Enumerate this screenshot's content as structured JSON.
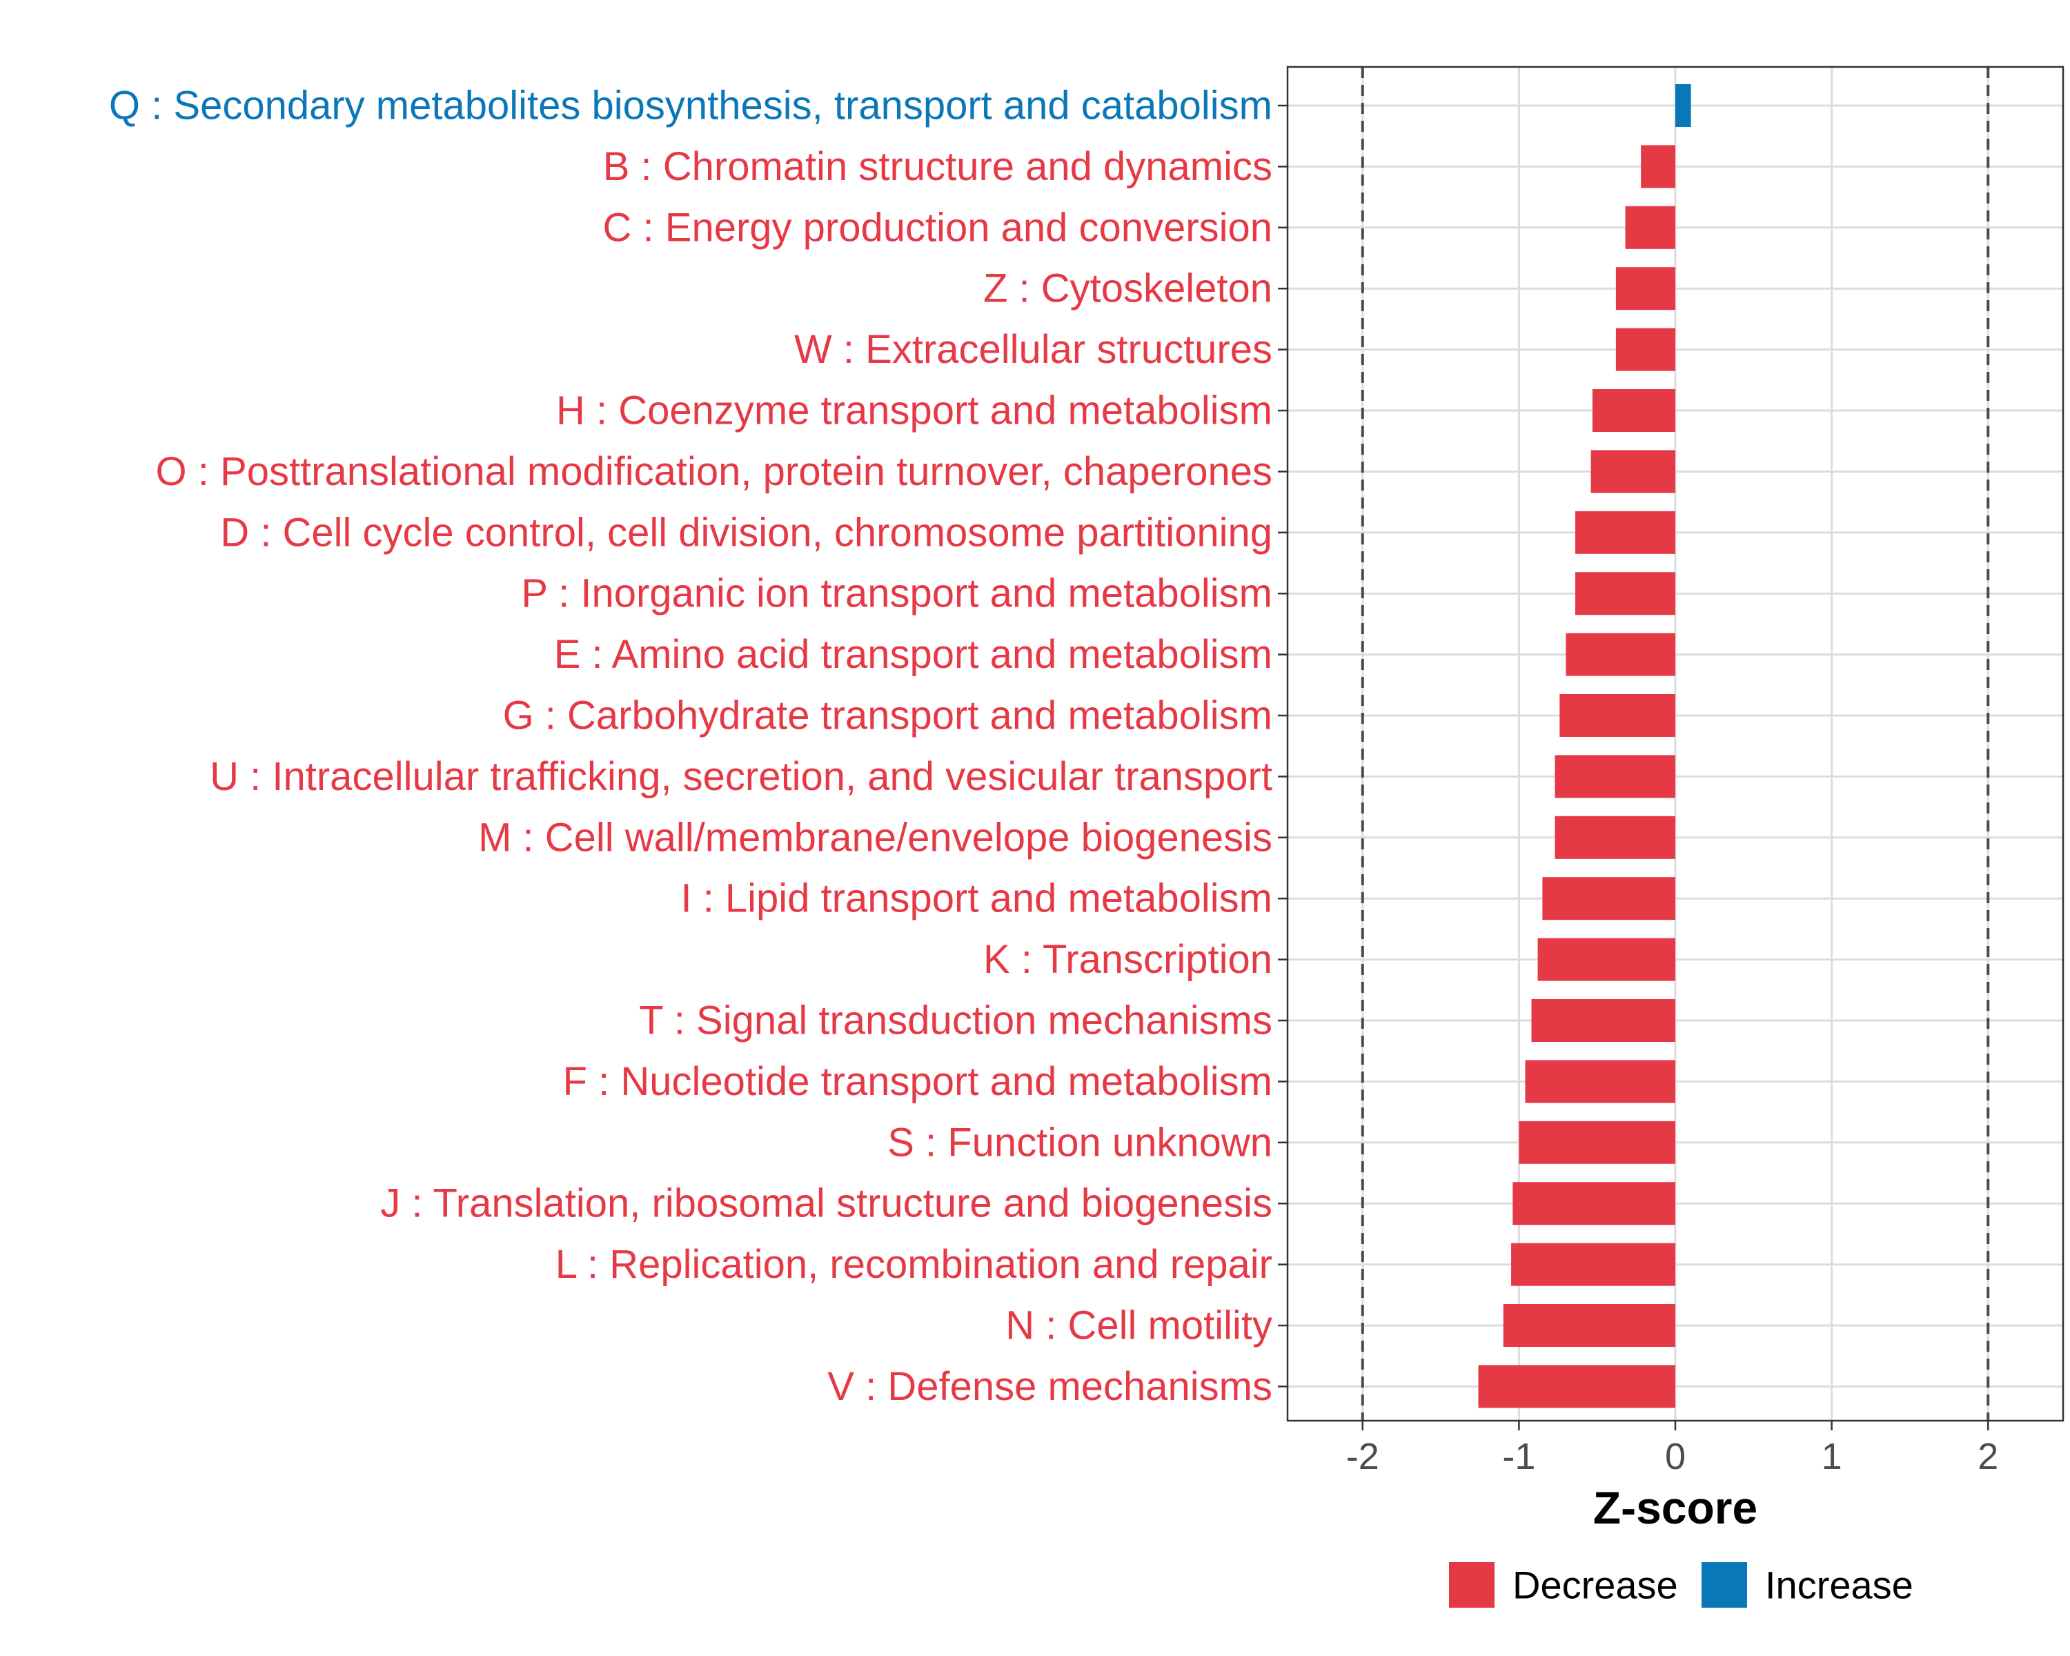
{
  "chart_data": {
    "type": "bar",
    "orientation": "horizontal",
    "title": "",
    "xlabel": "Z-score",
    "ylabel": "",
    "xlim": [
      -2.48,
      2.48
    ],
    "xticks": [
      -2,
      -1,
      0,
      1,
      2
    ],
    "reference_lines": [
      -2,
      2
    ],
    "grid": true,
    "legend_position": "bottom",
    "colors": {
      "Decrease": "#e63946",
      "Increase": "#0a77b8"
    },
    "legend": [
      {
        "label": "Decrease",
        "color": "#e63946"
      },
      {
        "label": "Increase",
        "color": "#0a77b8"
      }
    ],
    "categories": [
      "Q : Secondary metabolites biosynthesis, transport and catabolism",
      "B : Chromatin structure and dynamics",
      "C : Energy production and conversion",
      "Z : Cytoskeleton",
      "W : Extracellular structures",
      "H : Coenzyme transport and metabolism",
      "O : Posttranslational modification, protein turnover, chaperones",
      "D : Cell cycle control, cell division, chromosome partitioning",
      "P : Inorganic ion transport and metabolism",
      "E : Amino acid transport and metabolism",
      "G : Carbohydrate transport and metabolism",
      "U : Intracellular trafficking, secretion, and vesicular transport",
      "M : Cell wall/membrane/envelope biogenesis",
      "I : Lipid transport and metabolism",
      "K : Transcription",
      "T : Signal transduction mechanisms",
      "F : Nucleotide transport and metabolism",
      "S : Function unknown",
      "J : Translation, ribosomal structure and biogenesis",
      "L : Replication, recombination and repair",
      "N : Cell motility",
      "V : Defense mechanisms"
    ],
    "values": [
      0.1,
      -0.22,
      -0.32,
      -0.38,
      -0.38,
      -0.53,
      -0.54,
      -0.64,
      -0.64,
      -0.7,
      -0.74,
      -0.77,
      -0.77,
      -0.85,
      -0.88,
      -0.92,
      -0.96,
      -1.0,
      -1.04,
      -1.05,
      -1.1,
      -1.26
    ],
    "groups": [
      "Increase",
      "Decrease",
      "Decrease",
      "Decrease",
      "Decrease",
      "Decrease",
      "Decrease",
      "Decrease",
      "Decrease",
      "Decrease",
      "Decrease",
      "Decrease",
      "Decrease",
      "Decrease",
      "Decrease",
      "Decrease",
      "Decrease",
      "Decrease",
      "Decrease",
      "Decrease",
      "Decrease",
      "Decrease"
    ]
  }
}
